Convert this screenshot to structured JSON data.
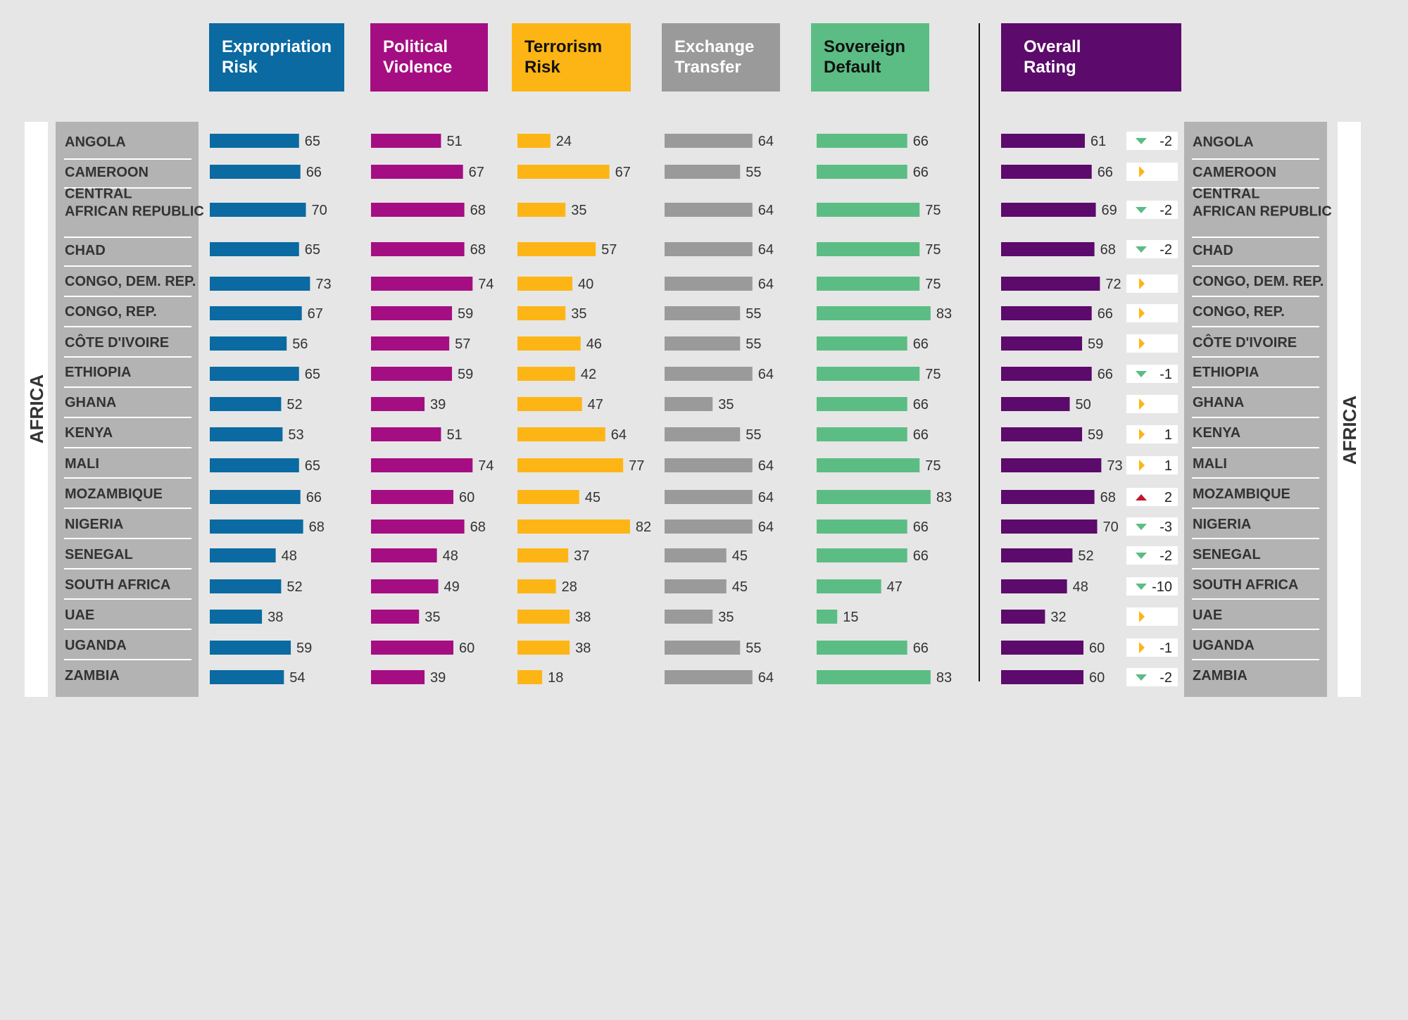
{
  "chart_data": {
    "type": "bar",
    "region": "AFRICA",
    "categories": [
      "ANGOLA",
      "CAMEROON",
      "CENTRAL AFRICAN REPUBLIC",
      "CHAD",
      "CONGO, DEM. REP.",
      "CONGO, REP.",
      "CÔTE D'IVOIRE",
      "ETHIOPIA",
      "GHANA",
      "KENYA",
      "MALI",
      "MOZAMBIQUE",
      "NIGERIA",
      "SENEGAL",
      "SOUTH AFRICA",
      "UAE",
      "UGANDA",
      "ZAMBIA"
    ],
    "series": [
      {
        "name": "Expropriation Risk",
        "color": "#0a6aa1",
        "values": [
          65,
          66,
          70,
          65,
          73,
          67,
          56,
          65,
          52,
          53,
          65,
          66,
          68,
          48,
          52,
          38,
          59,
          54
        ]
      },
      {
        "name": "Political Violence",
        "color": "#a50e82",
        "values": [
          51,
          67,
          68,
          68,
          74,
          59,
          57,
          59,
          39,
          51,
          74,
          60,
          68,
          48,
          49,
          35,
          60,
          39
        ]
      },
      {
        "name": "Terrorism Risk",
        "color": "#fdb515",
        "values": [
          24,
          67,
          35,
          57,
          40,
          35,
          46,
          42,
          47,
          64,
          77,
          45,
          82,
          37,
          28,
          38,
          38,
          18
        ]
      },
      {
        "name": "Exchange Transfer",
        "color": "#9a9a9a",
        "values": [
          64,
          55,
          64,
          64,
          64,
          55,
          55,
          64,
          35,
          55,
          64,
          64,
          64,
          45,
          45,
          35,
          55,
          64
        ]
      },
      {
        "name": "Sovereign Default",
        "color": "#5bbd84",
        "values": [
          66,
          66,
          75,
          75,
          75,
          83,
          66,
          75,
          66,
          66,
          75,
          83,
          66,
          66,
          47,
          15,
          66,
          83
        ]
      },
      {
        "name": "Overall Rating",
        "color": "#5c0a6b",
        "values": [
          61,
          66,
          69,
          68,
          72,
          66,
          59,
          66,
          50,
          59,
          73,
          68,
          70,
          52,
          48,
          32,
          60,
          60
        ]
      }
    ],
    "change": [
      {
        "dir": "down",
        "value": "-2"
      },
      {
        "dir": "same",
        "value": ""
      },
      {
        "dir": "down",
        "value": "-2"
      },
      {
        "dir": "down",
        "value": "-2"
      },
      {
        "dir": "same",
        "value": ""
      },
      {
        "dir": "same",
        "value": ""
      },
      {
        "dir": "same",
        "value": ""
      },
      {
        "dir": "down",
        "value": "-1"
      },
      {
        "dir": "same",
        "value": ""
      },
      {
        "dir": "same",
        "value": "1"
      },
      {
        "dir": "same",
        "value": "1"
      },
      {
        "dir": "up",
        "value": "2"
      },
      {
        "dir": "down",
        "value": "-3"
      },
      {
        "dir": "down",
        "value": "-2"
      },
      {
        "dir": "down",
        "value": "-10"
      },
      {
        "dir": "same",
        "value": ""
      },
      {
        "dir": "same",
        "value": "-1"
      },
      {
        "dir": "down",
        "value": "-2"
      }
    ],
    "header_lines": [
      [
        "Expropriation",
        "Risk"
      ],
      [
        "Political",
        "Violence"
      ],
      [
        "Terrorism",
        "Risk"
      ],
      [
        "Exchange",
        "Transfer"
      ],
      [
        "Sovereign",
        "Default"
      ],
      [
        "Overall",
        "Rating"
      ]
    ],
    "header_text_colors": [
      "#ffffff",
      "#ffffff",
      "#111111",
      "#ffffff",
      "#111111",
      "#ffffff"
    ],
    "category_lines": {
      "CENTRAL AFRICAN REPUBLIC": [
        "CENTRAL",
        "AFRICAN REPUBLIC"
      ]
    },
    "arrow_colors": {
      "down": "#5bbd84",
      "up": "#c0172f",
      "same": "#fdb515"
    },
    "scale_max": 100
  }
}
